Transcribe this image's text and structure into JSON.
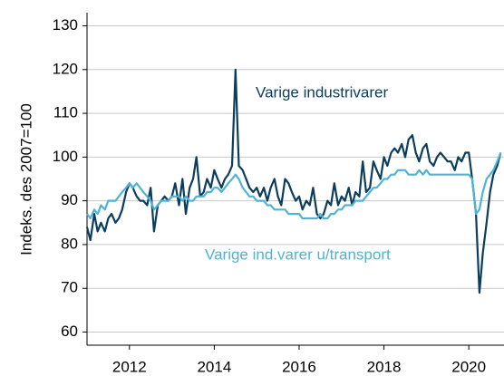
{
  "chart_data": {
    "type": "line",
    "y_label": "Indeks. des 2007=100",
    "annotations": [
      "Varige industrivarer",
      "Varige ind.varer u/transport"
    ],
    "x": [
      2011,
      2011.08,
      2011.17,
      2011.25,
      2011.33,
      2011.42,
      2011.5,
      2011.58,
      2011.67,
      2011.75,
      2011.83,
      2011.92,
      2012,
      2012.08,
      2012.17,
      2012.25,
      2012.33,
      2012.42,
      2012.5,
      2012.58,
      2012.67,
      2012.75,
      2012.83,
      2012.92,
      2013,
      2013.08,
      2013.17,
      2013.25,
      2013.33,
      2013.42,
      2013.5,
      2013.58,
      2013.67,
      2013.75,
      2013.83,
      2013.92,
      2014,
      2014.08,
      2014.17,
      2014.25,
      2014.33,
      2014.42,
      2014.5,
      2014.58,
      2014.67,
      2014.75,
      2014.83,
      2014.92,
      2015,
      2015.08,
      2015.17,
      2015.25,
      2015.33,
      2015.42,
      2015.5,
      2015.58,
      2015.67,
      2015.75,
      2015.83,
      2015.92,
      2016,
      2016.08,
      2016.17,
      2016.25,
      2016.33,
      2016.42,
      2016.5,
      2016.58,
      2016.67,
      2016.75,
      2016.83,
      2016.92,
      2017,
      2017.08,
      2017.17,
      2017.25,
      2017.33,
      2017.42,
      2017.5,
      2017.58,
      2017.67,
      2017.75,
      2017.83,
      2017.92,
      2018,
      2018.08,
      2018.17,
      2018.25,
      2018.33,
      2018.42,
      2018.5,
      2018.58,
      2018.67,
      2018.75,
      2018.83,
      2018.92,
      2019,
      2019.08,
      2019.17,
      2019.25,
      2019.33,
      2019.42,
      2019.5,
      2019.58,
      2019.67,
      2019.75,
      2019.83,
      2019.92,
      2020,
      2020.08,
      2020.17,
      2020.25,
      2020.33,
      2020.42,
      2020.5,
      2020.58,
      2020.67,
      2020.75
    ],
    "series": [
      {
        "name": "Varige industrivarer",
        "color": "#0b3d5e",
        "values": [
          84,
          81,
          87,
          83,
          85,
          83,
          86,
          87,
          85,
          86,
          88,
          92,
          94,
          93,
          91,
          90,
          90,
          89,
          93,
          83,
          89,
          90,
          91,
          90,
          91,
          94,
          89,
          95,
          87,
          93,
          95,
          100,
          91,
          92,
          95,
          93,
          97,
          95,
          93,
          95,
          96,
          98,
          120,
          98,
          97,
          95,
          93,
          92,
          93,
          91,
          93,
          90,
          93,
          95,
          91,
          89,
          95,
          94,
          92,
          90,
          91,
          88,
          90,
          89,
          93,
          87,
          86,
          87,
          90,
          89,
          94,
          89,
          91,
          90,
          93,
          89,
          92,
          91,
          99,
          92,
          93,
          99,
          97,
          95,
          100,
          98,
          101,
          102,
          101,
          103,
          100,
          104,
          105,
          101,
          99,
          102,
          103,
          99,
          98,
          100,
          101,
          100,
          99,
          99,
          97,
          100,
          99,
          101,
          101,
          95,
          87,
          69,
          78,
          85,
          92,
          96,
          98,
          101
        ]
      },
      {
        "name": "Varige ind.varer u/transport",
        "color": "#4fb3d6",
        "values": [
          87,
          86,
          88,
          87,
          89,
          88,
          90,
          90,
          90,
          91,
          92,
          93,
          94,
          93,
          94,
          93,
          92,
          91,
          90,
          88,
          89,
          90,
          90,
          90,
          91,
          91,
          91,
          90,
          91,
          90,
          90,
          91,
          91,
          91,
          92,
          92,
          93,
          93,
          92,
          93,
          94,
          95,
          96,
          95,
          93,
          92,
          91,
          91,
          90,
          90,
          90,
          89,
          89,
          88,
          88,
          88,
          88,
          87,
          87,
          87,
          87,
          86,
          86,
          86,
          86,
          86,
          87,
          86,
          86,
          87,
          87,
          88,
          88,
          89,
          89,
          89,
          90,
          90,
          90,
          91,
          92,
          93,
          93,
          94,
          95,
          95,
          96,
          96,
          97,
          97,
          97,
          96,
          96,
          96,
          97,
          96,
          97,
          96,
          96,
          96,
          96,
          96,
          96,
          96,
          96,
          96,
          96,
          96,
          96,
          95,
          87,
          88,
          92,
          95,
          96,
          97,
          99,
          101
        ]
      }
    ],
    "xlim": [
      2011,
      2020.83
    ],
    "xticks": [
      2012,
      2014,
      2016,
      2018,
      2020
    ],
    "ylim": [
      57,
      133
    ],
    "yticks": [
      60,
      70,
      80,
      90,
      100,
      110,
      120,
      130
    ],
    "grid": true
  }
}
